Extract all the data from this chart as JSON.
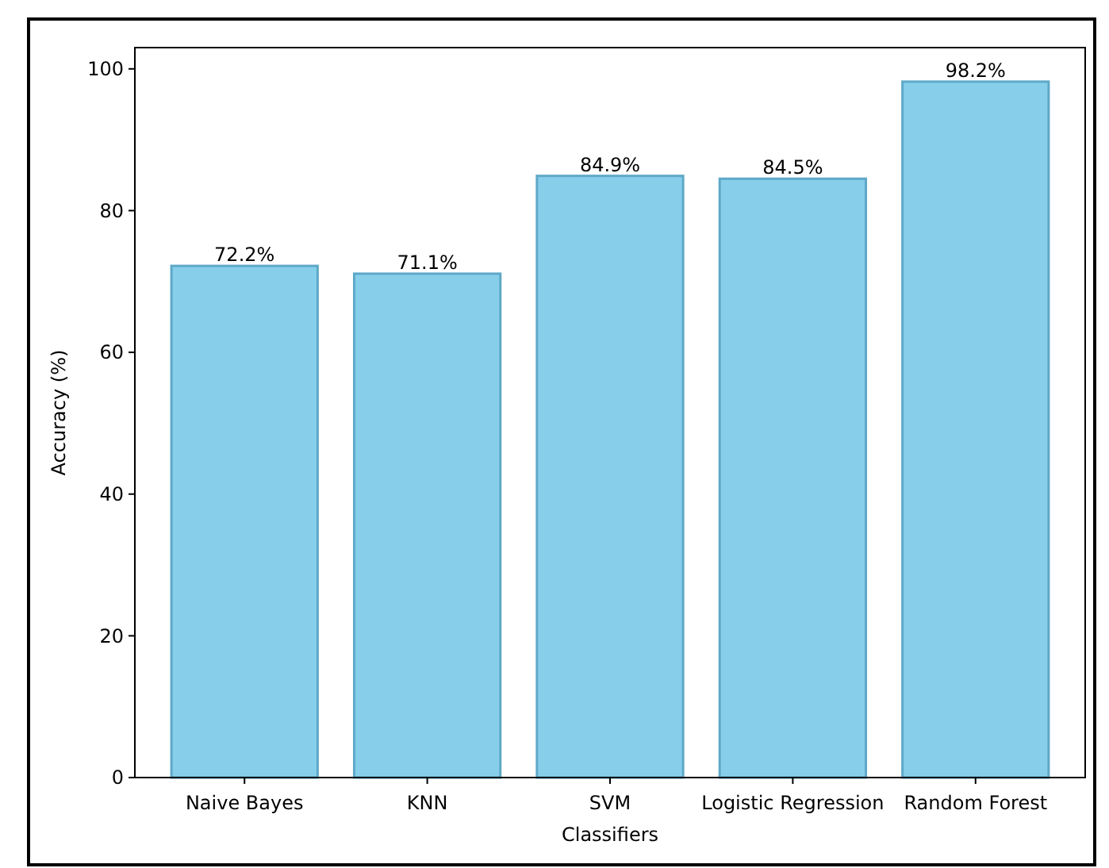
{
  "chart_data": {
    "type": "bar",
    "xlabel": "Classifiers",
    "ylabel": "Accuracy (%)",
    "categories": [
      "Naive Bayes",
      "KNN",
      "SVM",
      "Logistic Regression",
      "Random Forest"
    ],
    "values": [
      72.2,
      71.1,
      84.9,
      84.5,
      98.2
    ],
    "value_labels": [
      "72.2%",
      "71.1%",
      "84.9%",
      "84.5%",
      "98.2%"
    ],
    "color": "#87ceeb",
    "ylim": [
      0,
      103
    ],
    "yticks": [
      0,
      20,
      40,
      60,
      80,
      100
    ],
    "grid": false
  }
}
